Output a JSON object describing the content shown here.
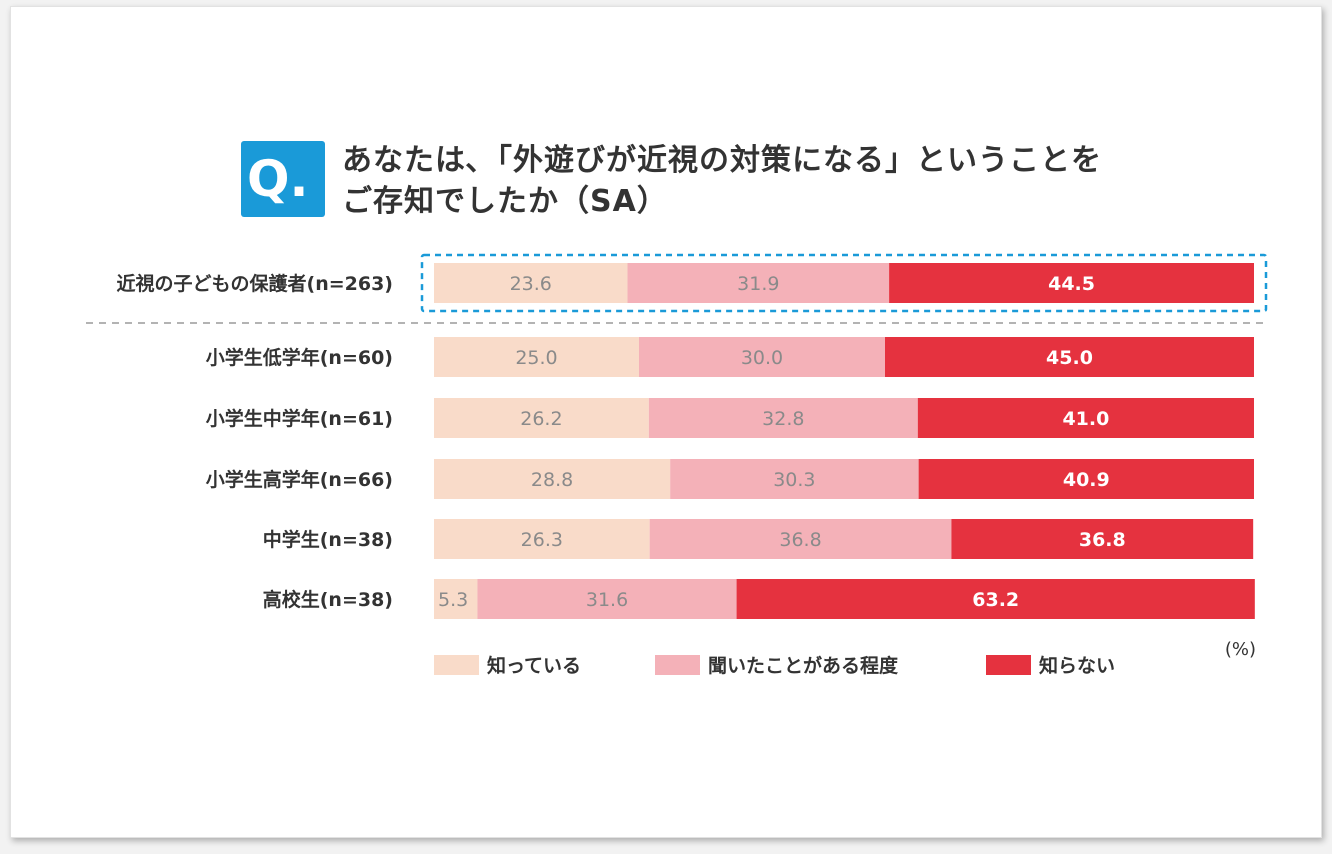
{
  "question": {
    "badge": "Q.",
    "title_line1": "あなたは､「外遊びが近視の対策になる」ということを",
    "title_line2": "ご存知でしたか（SA）"
  },
  "colors": {
    "know": "#f9dbc9",
    "heard": "#f4b1b8",
    "dont_know": "#e5323f",
    "highlight": "#1a9ad8",
    "badge": "#1a9ad8"
  },
  "chart_data": {
    "type": "bar",
    "orientation": "horizontal",
    "stacked": true,
    "unit": "(%)",
    "categories": [
      "近視の子どもの保護者(n=263)",
      "小学生低学年(n=60)",
      "小学生中学年(n=61)",
      "小学生高学年(n=66)",
      "中学生(n=38)",
      "高校生(n=38)"
    ],
    "series": [
      {
        "name": "知っている",
        "color": "#f9dbc9",
        "values": [
          23.6,
          25.0,
          26.2,
          28.8,
          26.3,
          5.3
        ]
      },
      {
        "name": "聞いたことがある程度",
        "color": "#f4b1b8",
        "values": [
          31.9,
          30.0,
          32.8,
          30.3,
          36.8,
          31.6
        ]
      },
      {
        "name": "知らない",
        "color": "#e5323f",
        "values": [
          44.5,
          45.0,
          41.0,
          40.9,
          36.8,
          63.2
        ]
      }
    ],
    "value_labels": [
      [
        "23.6",
        "31.9",
        "44.5"
      ],
      [
        "25.0",
        "30.0",
        "45.0"
      ],
      [
        "26.2",
        "32.8",
        "41.0"
      ],
      [
        "28.8",
        "30.3",
        "40.9"
      ],
      [
        "26.3",
        "36.8",
        "36.8"
      ],
      [
        "5.3",
        "31.6",
        "63.2"
      ]
    ],
    "xlim": [
      0,
      100
    ],
    "highlighted_category": "近視の子どもの保護者(n=263)",
    "legend_position": "bottom",
    "grid": false
  }
}
